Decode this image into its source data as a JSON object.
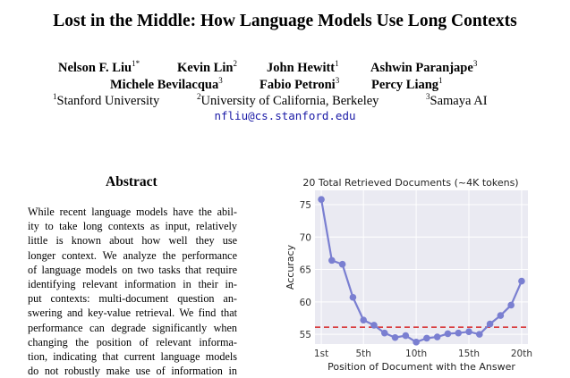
{
  "paper": {
    "title": "Lost in the Middle: How Language Models Use Long Contexts",
    "authors_row1": [
      {
        "name": "Nelson F. Liu",
        "sup": "1*"
      },
      {
        "name": "Kevin Lin",
        "sup": "2"
      },
      {
        "name": "John Hewitt",
        "sup": "1"
      },
      {
        "name": "Ashwin Paranjape",
        "sup": "3"
      }
    ],
    "authors_row2": [
      {
        "name": "Michele Bevilacqua",
        "sup": "3"
      },
      {
        "name": "Fabio Petroni",
        "sup": "3"
      },
      {
        "name": "Percy Liang",
        "sup": "1"
      }
    ],
    "affiliations": [
      {
        "sup": "1",
        "name": "Stanford University"
      },
      {
        "sup": "2",
        "name": "University of California, Berkeley"
      },
      {
        "sup": "3",
        "name": "Samaya AI"
      }
    ],
    "email": "nfliu@cs.stanford.edu",
    "abstract_title": "Abstract",
    "abstract_lines": [
      "While recent language models have the abil-",
      "ity to take long contexts as input, relatively",
      "little is known about how well they use",
      "longer context. We analyze the performance",
      "of language models on two tasks that require",
      "identifying relevant information in their in-",
      "put contexts: multi-document question an-",
      "swering and key-value retrieval. We find that",
      "performance can degrade significantly when",
      "changing the position of relevant informa-",
      "tion, indicating that current language models",
      "do not robustly make use of information in"
    ]
  },
  "chart_data": {
    "type": "line",
    "title": "20 Total Retrieved Documents (~4K tokens)",
    "xlabel": "Position of Document with the Answer",
    "ylabel": "Accuracy",
    "x": [
      1,
      2,
      3,
      4,
      5,
      6,
      7,
      8,
      9,
      10,
      11,
      12,
      13,
      14,
      15,
      16,
      17,
      18,
      19,
      20
    ],
    "x_tick_values": [
      1,
      5,
      10,
      15,
      20
    ],
    "x_tick_labels": [
      "1st",
      "5th",
      "10th",
      "15th",
      "20th"
    ],
    "y_tick_values": [
      55,
      60,
      65,
      70,
      75
    ],
    "xlim": [
      0.4,
      20.6
    ],
    "ylim": [
      53.5,
      77.2
    ],
    "grid": true,
    "series": [
      {
        "values": [
          75.8,
          66.4,
          65.8,
          60.7,
          57.2,
          56.4,
          55.2,
          54.5,
          54.8,
          53.8,
          54.4,
          54.6,
          55.1,
          55.2,
          55.4,
          55.0,
          56.6,
          57.9,
          59.5,
          63.2
        ],
        "color": "#7a7fd1"
      }
    ],
    "reference_line": {
      "value": 56.1,
      "color": "#d62728",
      "style": "dashed"
    },
    "background": "#eaeaf2"
  }
}
